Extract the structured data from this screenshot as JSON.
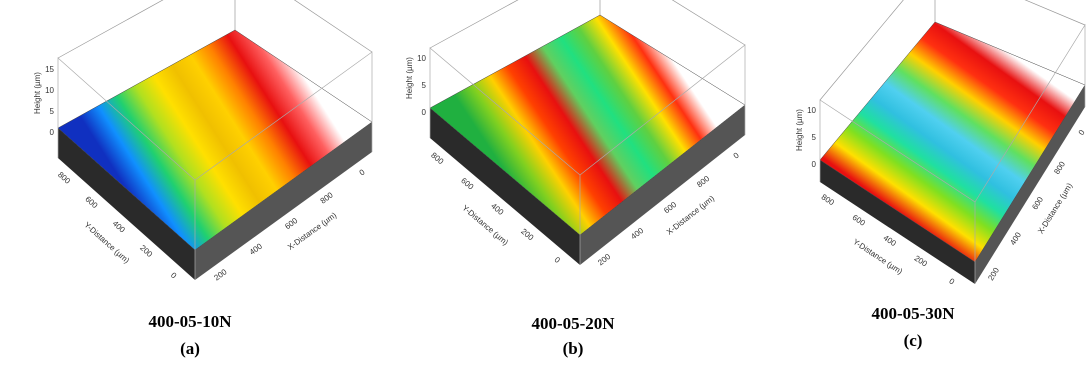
{
  "panels": [
    {
      "caption": "400-05-10N",
      "label": "(a)",
      "z_label": "Height (µm)",
      "y_label": "Y-Distance (µm)",
      "x_label": "X-Distance (µm)",
      "z_ticks": [
        "15",
        "10",
        "5",
        "0"
      ],
      "y_ticks": [
        "800",
        "600",
        "400",
        "200",
        "0"
      ],
      "x_ticks": [
        "200",
        "400",
        "600",
        "800",
        "0"
      ]
    },
    {
      "caption": "400-05-20N",
      "label": "(b)",
      "z_label": "Height (µm)",
      "y_label": "Y-Distance (µm)",
      "x_label": "X-Distance (µm)",
      "z_ticks": [
        "10",
        "5",
        "0"
      ],
      "y_ticks": [
        "800",
        "600",
        "400",
        "200",
        "0"
      ],
      "x_ticks": [
        "200",
        "400",
        "600",
        "800",
        "0"
      ]
    },
    {
      "caption": "400-05-30N",
      "label": "(c)",
      "z_label": "Height (µm)",
      "y_label": "Y-Distance (µm)",
      "x_label": "X-Distance (µm)",
      "z_ticks": [
        "10",
        "5",
        "0"
      ],
      "y_ticks": [
        "800",
        "600",
        "400",
        "200",
        "0"
      ],
      "x_ticks": [
        "200",
        "400",
        "600",
        "800",
        "0"
      ]
    }
  ]
}
